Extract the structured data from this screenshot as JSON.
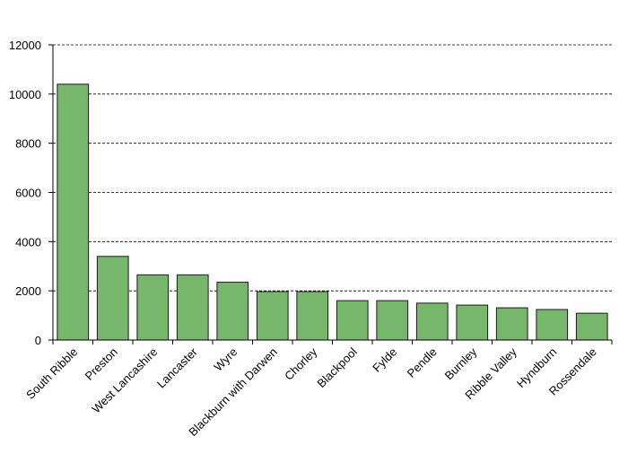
{
  "chart_data": {
    "type": "bar",
    "categories": [
      "South Ribble",
      "Preston",
      "West Lancashire",
      "Lancaster",
      "Wyre",
      "Blackburn with Darwen",
      "Chorley",
      "Blackpool",
      "Fylde",
      "Pendle",
      "Burnley",
      "Ribble Valley",
      "Hyndburn",
      "Rossendale"
    ],
    "values": [
      10400,
      3400,
      2650,
      2650,
      2350,
      1970,
      1970,
      1600,
      1600,
      1500,
      1420,
      1310,
      1240,
      1090
    ],
    "color": "#77b76c",
    "ylim": [
      0,
      12000
    ],
    "yticks": [
      0,
      2000,
      4000,
      6000,
      8000,
      10000,
      12000
    ],
    "grid": true
  }
}
